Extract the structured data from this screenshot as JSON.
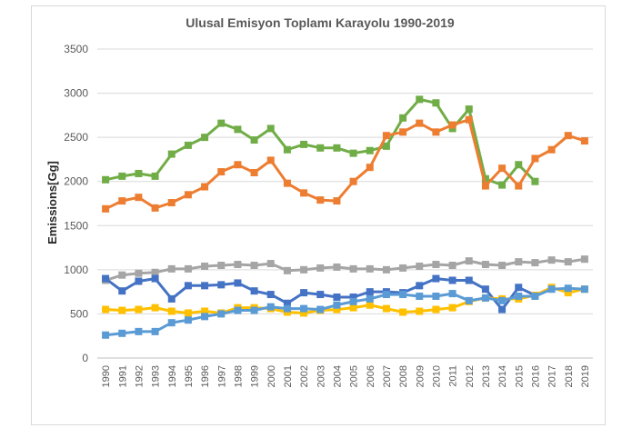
{
  "chart_data": {
    "type": "line",
    "title": "Ulusal  Emisyon  Toplamı Karayolu 1990-2019",
    "xlabel": "",
    "ylabel": "Emissions[Gg]",
    "ylim": [
      0,
      3500
    ],
    "yticks": [
      0,
      500,
      1000,
      1500,
      2000,
      2500,
      3000,
      3500
    ],
    "grid": true,
    "legend": "none",
    "x": [
      "1990",
      "1991",
      "1992",
      "1993",
      "1994",
      "1995",
      "1996",
      "1997",
      "1998",
      "1999",
      "2000",
      "2001",
      "2002",
      "2003",
      "2004",
      "2005",
      "2006",
      "2007",
      "2008",
      "2009",
      "2010",
      "2011",
      "2012",
      "2013",
      "2014",
      "2015",
      "2016",
      "2017",
      "2018",
      "2019"
    ],
    "series": [
      {
        "color": "#70ad47",
        "values": [
          2020,
          2060,
          2090,
          2060,
          2310,
          2410,
          2500,
          2660,
          2590,
          2470,
          2600,
          2360,
          2420,
          2380,
          2380,
          2320,
          2350,
          2400,
          2720,
          2930,
          2890,
          2600,
          2820,
          2030,
          1960,
          2190,
          2000,
          null,
          null,
          null
        ]
      },
      {
        "color": "#ed7d31",
        "values": [
          1690,
          1780,
          1820,
          1700,
          1760,
          1850,
          1940,
          2110,
          2190,
          2100,
          2240,
          1980,
          1870,
          1790,
          1780,
          2000,
          2160,
          2520,
          2560,
          2660,
          2560,
          2640,
          2700,
          1950,
          2150,
          1950,
          2260,
          2360,
          2520,
          2460
        ]
      },
      {
        "color": "#a5a5a5",
        "values": [
          880,
          940,
          960,
          970,
          1010,
          1010,
          1040,
          1050,
          1060,
          1050,
          1070,
          990,
          1000,
          1020,
          1030,
          1010,
          1010,
          1000,
          1020,
          1040,
          1060,
          1050,
          1100,
          1060,
          1050,
          1090,
          1080,
          1110,
          1090,
          1120
        ]
      },
      {
        "color": "#4472c4",
        "values": [
          900,
          760,
          870,
          900,
          670,
          820,
          820,
          830,
          850,
          760,
          720,
          620,
          740,
          720,
          690,
          690,
          750,
          750,
          740,
          820,
          900,
          880,
          880,
          780,
          550,
          800,
          710,
          null,
          null,
          null
        ]
      },
      {
        "color": "#ffc000",
        "values": [
          550,
          540,
          550,
          570,
          530,
          510,
          530,
          510,
          570,
          570,
          560,
          520,
          510,
          540,
          550,
          570,
          600,
          560,
          520,
          530,
          550,
          570,
          640,
          680,
          670,
          670,
          710,
          800,
          740,
          780
        ]
      },
      {
        "color": "#5b9bd5",
        "values": [
          260,
          280,
          300,
          300,
          400,
          430,
          470,
          500,
          540,
          540,
          580,
          560,
          560,
          550,
          600,
          640,
          670,
          720,
          720,
          700,
          700,
          730,
          650,
          680,
          650,
          700,
          700,
          780,
          790,
          780
        ]
      }
    ]
  }
}
